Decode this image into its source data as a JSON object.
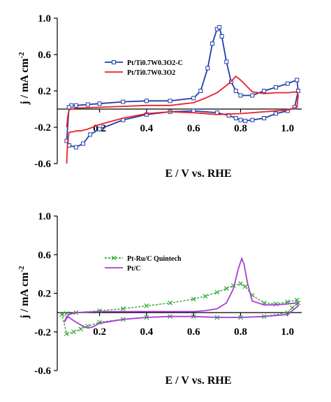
{
  "chart_data": [
    {
      "type": "line",
      "xlabel": "E / V vs. RHE",
      "ylabel": "j / mA cm",
      "ylabel_sup": "-2",
      "xlim": [
        0.02,
        1.06
      ],
      "ylim": [
        -0.6,
        1.0
      ],
      "xticks": [
        0.2,
        0.4,
        0.6,
        0.8,
        1.0
      ],
      "xtick_labels": [
        "0.2",
        "0.4",
        "0.6",
        "0.8",
        "1.0"
      ],
      "yticks": [
        1.0,
        0.6,
        0.2,
        -0.2,
        -0.6
      ],
      "ytick_labels": [
        "1.0",
        "0.6",
        "0.2",
        "-0.2",
        "-0.6"
      ],
      "legend_position": "middle-left",
      "series": [
        {
          "name": "Pt/Ti0.7W0.3O2-C",
          "color": "#1f3fa8",
          "marker": "square",
          "x": [
            0.07,
            0.08,
            0.1,
            0.15,
            0.2,
            0.3,
            0.4,
            0.5,
            0.6,
            0.63,
            0.66,
            0.68,
            0.7,
            0.71,
            0.72,
            0.74,
            0.76,
            0.78,
            0.8,
            0.85,
            0.9,
            0.95,
            1.0,
            1.04,
            1.045,
            1.03,
            1.0,
            0.95,
            0.9,
            0.85,
            0.82,
            0.8,
            0.78,
            0.75,
            0.7,
            0.6,
            0.5,
            0.4,
            0.3,
            0.2,
            0.16,
            0.13,
            0.1,
            0.07,
            0.06,
            0.07
          ],
          "y": [
            0.02,
            0.04,
            0.04,
            0.05,
            0.06,
            0.08,
            0.09,
            0.09,
            0.12,
            0.2,
            0.45,
            0.72,
            0.88,
            0.9,
            0.8,
            0.52,
            0.3,
            0.2,
            0.15,
            0.15,
            0.2,
            0.24,
            0.28,
            0.32,
            0.2,
            0.02,
            -0.02,
            -0.05,
            -0.1,
            -0.12,
            -0.13,
            -0.12,
            -0.1,
            -0.07,
            -0.04,
            -0.02,
            -0.03,
            -0.06,
            -0.12,
            -0.22,
            -0.28,
            -0.38,
            -0.42,
            -0.4,
            -0.35,
            0.02
          ]
        },
        {
          "name": "Pt/Ti0.7W0.3O2",
          "color": "#e8212b",
          "x": [
            0.06,
            0.065,
            0.07,
            0.08,
            0.1,
            0.2,
            0.3,
            0.4,
            0.5,
            0.6,
            0.65,
            0.7,
            0.75,
            0.78,
            0.8,
            0.85,
            0.9,
            0.95,
            1.0,
            1.04,
            1.045,
            1.04,
            1.0,
            0.9,
            0.8,
            0.7,
            0.6,
            0.5,
            0.4,
            0.3,
            0.2,
            0.15,
            0.12,
            0.1,
            0.09,
            0.08,
            0.07,
            0.065,
            0.062,
            0.06
          ],
          "y": [
            -0.2,
            -0.08,
            -0.01,
            0.0,
            0.01,
            0.02,
            0.03,
            0.04,
            0.04,
            0.07,
            0.12,
            0.18,
            0.28,
            0.36,
            0.32,
            0.19,
            0.17,
            0.18,
            0.18,
            0.19,
            0.15,
            0.02,
            -0.01,
            -0.03,
            -0.05,
            -0.06,
            -0.04,
            -0.03,
            -0.05,
            -0.1,
            -0.17,
            -0.22,
            -0.24,
            -0.24,
            -0.25,
            -0.25,
            -0.26,
            -0.35,
            -0.48,
            -0.6
          ]
        }
      ]
    },
    {
      "type": "line",
      "xlabel": "E / V vs. RHE",
      "ylabel": "j / mA cm",
      "ylabel_sup": "-2",
      "xlim": [
        0.02,
        1.06
      ],
      "ylim": [
        -0.6,
        1.0
      ],
      "xticks": [
        0.2,
        0.4,
        0.6,
        0.8,
        1.0
      ],
      "xtick_labels": [
        "0.2",
        "0.4",
        "0.6",
        "0.8",
        "1.0"
      ],
      "yticks": [
        1.0,
        0.6,
        0.2,
        -0.2,
        -0.6
      ],
      "ytick_labels": [
        "1.0",
        "0.6",
        "0.2",
        "-0.2",
        "-0.6"
      ],
      "legend_position": "middle-left",
      "series": [
        {
          "name": "Pt-Ru/C Quintech",
          "color": "#2fa82f",
          "marker": "x",
          "x": [
            0.04,
            0.06,
            0.1,
            0.2,
            0.3,
            0.4,
            0.5,
            0.6,
            0.65,
            0.7,
            0.74,
            0.77,
            0.8,
            0.82,
            0.85,
            0.9,
            0.95,
            1.0,
            1.04,
            1.045,
            1.02,
            1.0,
            0.9,
            0.8,
            0.7,
            0.6,
            0.5,
            0.4,
            0.3,
            0.2,
            0.15,
            0.12,
            0.09,
            0.06,
            0.04
          ],
          "y": [
            -0.02,
            -0.01,
            0.0,
            0.02,
            0.04,
            0.07,
            0.1,
            0.14,
            0.17,
            0.21,
            0.25,
            0.28,
            0.3,
            0.27,
            0.18,
            0.1,
            0.09,
            0.11,
            0.13,
            0.1,
            0.05,
            0.0,
            -0.04,
            -0.05,
            -0.05,
            -0.04,
            -0.04,
            -0.05,
            -0.07,
            -0.1,
            -0.14,
            -0.17,
            -0.2,
            -0.22,
            -0.02
          ]
        },
        {
          "name": "Pt/C",
          "color": "#a63ed8",
          "x": [
            0.05,
            0.07,
            0.1,
            0.2,
            0.3,
            0.4,
            0.5,
            0.6,
            0.65,
            0.7,
            0.74,
            0.77,
            0.79,
            0.805,
            0.815,
            0.83,
            0.85,
            0.9,
            0.95,
            1.0,
            1.04,
            1.045,
            1.02,
            1.0,
            0.9,
            0.8,
            0.7,
            0.6,
            0.5,
            0.4,
            0.3,
            0.2,
            0.17,
            0.15,
            0.13,
            0.1,
            0.07,
            0.06,
            0.05
          ],
          "y": [
            -0.1,
            -0.02,
            0.0,
            0.01,
            0.01,
            0.01,
            0.01,
            0.01,
            0.02,
            0.04,
            0.1,
            0.25,
            0.45,
            0.56,
            0.5,
            0.3,
            0.12,
            0.08,
            0.08,
            0.09,
            0.1,
            0.07,
            0.02,
            -0.02,
            -0.04,
            -0.05,
            -0.05,
            -0.04,
            -0.04,
            -0.05,
            -0.07,
            -0.11,
            -0.15,
            -0.16,
            -0.14,
            -0.1,
            -0.05,
            -0.04,
            -0.1
          ]
        }
      ]
    }
  ]
}
